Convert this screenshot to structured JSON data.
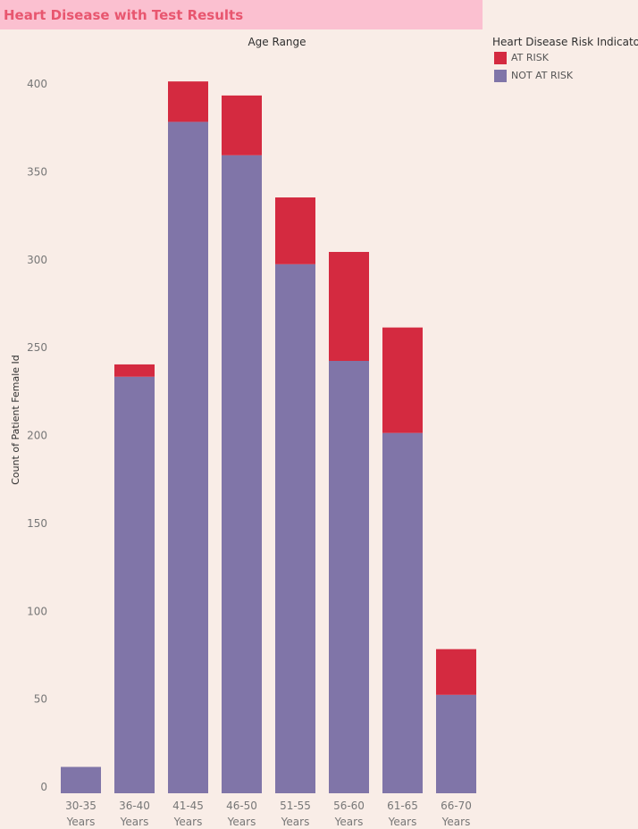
{
  "title": "Heart Disease with Test Results",
  "legend": {
    "title": "Heart Disease Risk Indicator",
    "items": [
      {
        "label": "AT RISK",
        "color": "#d42a40"
      },
      {
        "label": "NOT AT RISK",
        "color": "#8075a8"
      }
    ]
  },
  "colors": {
    "background": "#f9ede7",
    "title_bar": "#fbc0d0",
    "title_text": "#e8566f",
    "at_risk": "#d42a40",
    "not_at_risk": "#8075a8"
  },
  "chart_data": {
    "type": "bar",
    "stacked": true,
    "title": "Heart Disease with Test Results",
    "top_label": "Age Range",
    "ylabel": "Count of Patient Female Id",
    "categories": [
      [
        "30-35",
        "Years"
      ],
      [
        "36-40",
        "Years"
      ],
      [
        "41-45",
        "Years"
      ],
      [
        "46-50",
        "Years"
      ],
      [
        "51-55",
        "Years"
      ],
      [
        "56-60",
        "Years"
      ],
      [
        "61-65",
        "Years"
      ],
      [
        "66-70",
        "Years"
      ]
    ],
    "series": [
      {
        "name": "NOT AT RISK",
        "values": [
          15,
          237,
          382,
          363,
          301,
          246,
          205,
          56
        ]
      },
      {
        "name": "AT RISK",
        "values": [
          0,
          7,
          23,
          34,
          38,
          62,
          60,
          26
        ]
      }
    ],
    "yticks": [
      0,
      50,
      100,
      150,
      200,
      250,
      300,
      350,
      400
    ],
    "ylim": [
      0,
      420
    ],
    "grid": false,
    "legend_position": "top-right"
  }
}
